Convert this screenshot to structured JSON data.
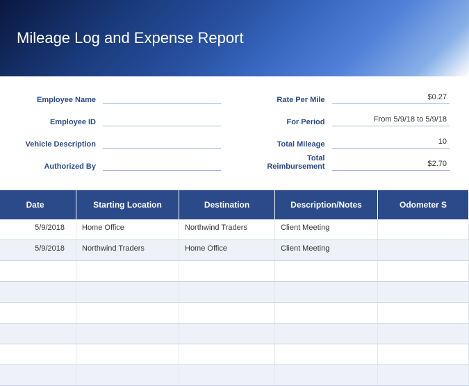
{
  "title": "Mileage Log and Expense Report",
  "colors": {
    "header_deep": "#0a1840",
    "header_mid": "#2850a0",
    "label_color": "#2a4a8a",
    "table_header_bg": "#2a4a8a",
    "row_alt_bg": "#eef2f8",
    "border_light": "#c8d4e8",
    "underline": "#a0b8d8"
  },
  "info_left": [
    {
      "label": "Employee Name",
      "value": ""
    },
    {
      "label": "Employee ID",
      "value": ""
    },
    {
      "label": "Vehicle Description",
      "value": ""
    },
    {
      "label": "Authorized By",
      "value": ""
    }
  ],
  "info_right": [
    {
      "label": "Rate Per Mile",
      "value": "$0.27"
    },
    {
      "label": "For Period",
      "value": "From 5/9/18 to 5/9/18"
    },
    {
      "label": "Total Mileage",
      "value": "10"
    },
    {
      "label": "Total Reimbursement",
      "value": "$2.70"
    }
  ],
  "table": {
    "columns": [
      {
        "label": "Date",
        "class": "col-date"
      },
      {
        "label": "Starting Location",
        "class": "col-start"
      },
      {
        "label": "Destination",
        "class": "col-dest"
      },
      {
        "label": "Description/Notes",
        "class": "col-desc"
      },
      {
        "label": "Odometer S",
        "class": "col-odo"
      }
    ],
    "rows": [
      {
        "date": "5/9/2018",
        "start": "Home Office",
        "dest": "Northwind Traders",
        "desc": "Client Meeting",
        "odo": ""
      },
      {
        "date": "5/9/2018",
        "start": "Northwind Traders",
        "dest": "Home Office",
        "desc": "Client Meeting",
        "odo": ""
      },
      {
        "date": "",
        "start": "",
        "dest": "",
        "desc": "",
        "odo": ""
      },
      {
        "date": "",
        "start": "",
        "dest": "",
        "desc": "",
        "odo": ""
      },
      {
        "date": "",
        "start": "",
        "dest": "",
        "desc": "",
        "odo": ""
      },
      {
        "date": "",
        "start": "",
        "dest": "",
        "desc": "",
        "odo": ""
      },
      {
        "date": "",
        "start": "",
        "dest": "",
        "desc": "",
        "odo": ""
      },
      {
        "date": "",
        "start": "",
        "dest": "",
        "desc": "",
        "odo": ""
      }
    ]
  }
}
